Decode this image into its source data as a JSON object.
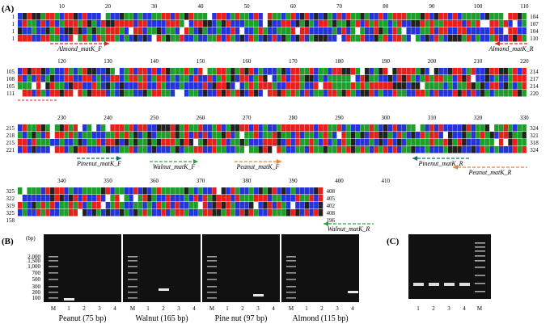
{
  "panels": {
    "a": "(A)",
    "b": "(B)",
    "c": "(C)"
  },
  "alignment": {
    "blocks": [
      {
        "ruler": [
          "10",
          "20",
          "30",
          "40",
          "50",
          "60",
          "70",
          "80",
          "90",
          "100",
          "110"
        ],
        "starts": [
          "1",
          "1",
          "1",
          "1"
        ],
        "ends": [
          "104",
          "107",
          "104",
          "110"
        ],
        "primers": [
          "Almond_matK_F",
          "Almond_matK_R"
        ]
      },
      {
        "ruler": [
          "120",
          "130",
          "140",
          "150",
          "160",
          "170",
          "180",
          "190",
          "200",
          "210",
          "220"
        ],
        "starts": [
          "105",
          "108",
          "105",
          "111"
        ],
        "ends": [
          "214",
          "217",
          "214",
          "220"
        ],
        "primers": []
      },
      {
        "ruler": [
          "230",
          "240",
          "250",
          "260",
          "270",
          "280",
          "290",
          "300",
          "310",
          "320",
          "330"
        ],
        "starts": [
          "215",
          "218",
          "215",
          "221"
        ],
        "ends": [
          "324",
          "321",
          "318",
          "324"
        ],
        "primers": [
          "Pinenut_matK_F",
          "Walnut_matK_F",
          "Peanut_matK_F",
          "Pinenut_matK_R",
          "Peanut_matK_R"
        ]
      },
      {
        "ruler": [
          "340",
          "350",
          "360",
          "370",
          "380",
          "390",
          "400",
          "410"
        ],
        "starts": [
          "325",
          "322",
          "319",
          "325",
          "158"
        ],
        "ends": [
          "408",
          "405",
          "402",
          "408",
          "196"
        ],
        "primers": [
          "Walnut_matK_R"
        ]
      }
    ]
  },
  "gel_b": {
    "unit": "(bp)",
    "ladder": [
      "2,000",
      "1,500",
      "1,000",
      "700",
      "500",
      "300",
      "200",
      "100"
    ],
    "lanes": [
      "M",
      "1",
      "2",
      "3",
      "4"
    ],
    "captions": [
      "Peanut (75 bp)",
      "Walnut (165 bp)",
      "Pine nut (97 bp)",
      "Almond (115 bp)"
    ]
  },
  "gel_c": {
    "lanes": [
      "1",
      "2",
      "3",
      "4",
      "M"
    ]
  }
}
